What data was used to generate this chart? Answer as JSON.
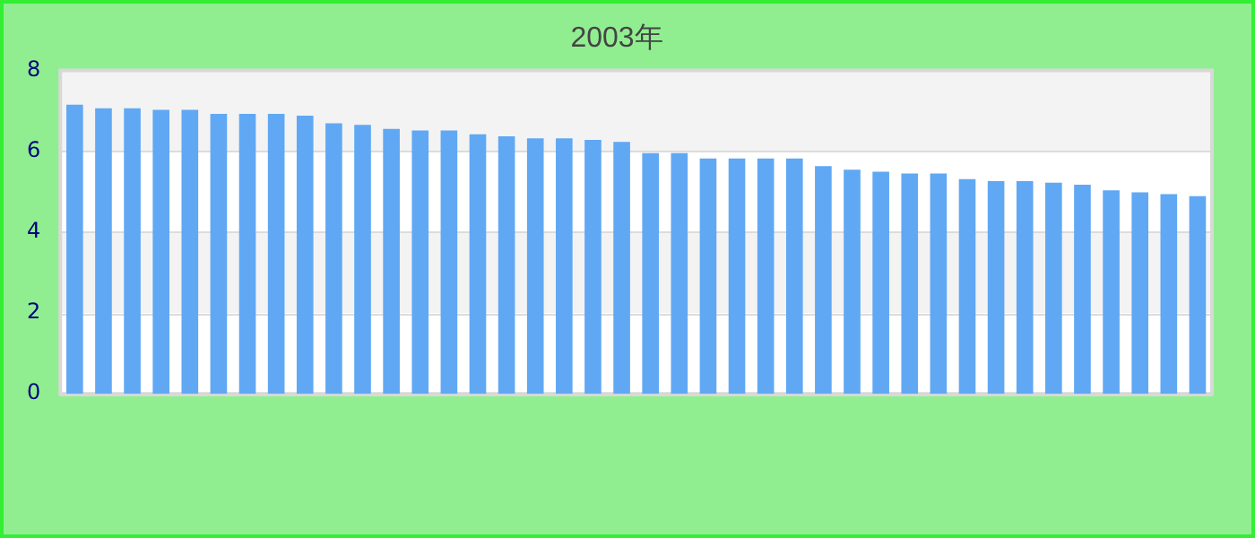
{
  "chart_data": {
    "type": "bar",
    "subtitle": "2003年",
    "categories": [
      null,
      null,
      null,
      null,
      null,
      null,
      null,
      null,
      null,
      null,
      null,
      null,
      null,
      null,
      null,
      null,
      null,
      null,
      null,
      null,
      null,
      null,
      null,
      null,
      null,
      null,
      null,
      null,
      null,
      null,
      null,
      null,
      null,
      null,
      null,
      null,
      null,
      null,
      null,
      null
    ],
    "values": [
      7.15,
      7.06,
      7.06,
      7.02,
      7.02,
      6.92,
      6.92,
      6.92,
      6.88,
      6.69,
      6.65,
      6.55,
      6.51,
      6.51,
      6.42,
      6.37,
      6.32,
      6.32,
      6.28,
      6.23,
      5.95,
      5.95,
      5.82,
      5.82,
      5.82,
      5.82,
      5.63,
      5.54,
      5.49,
      5.45,
      5.45,
      5.31,
      5.26,
      5.26,
      5.22,
      5.17,
      5.03,
      4.98,
      4.94,
      4.89
    ],
    "color": "#60a8f4",
    "ylim": [
      0,
      8
    ],
    "yticks": [
      0,
      2,
      4,
      6,
      8
    ],
    "grid": "y"
  }
}
